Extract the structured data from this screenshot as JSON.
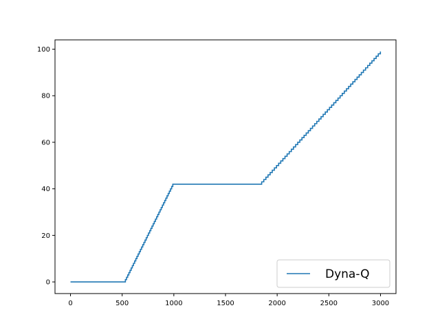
{
  "chart_data": {
    "type": "line",
    "title": "",
    "xlabel": "",
    "ylabel": "",
    "xlim": [
      -150,
      3150
    ],
    "ylim": [
      -5,
      104
    ],
    "xticks": [
      0,
      500,
      1000,
      1500,
      2000,
      2500,
      3000
    ],
    "yticks": [
      0,
      20,
      40,
      60,
      80,
      100
    ],
    "grid": false,
    "legend": {
      "placement": "lower-right"
    },
    "series": [
      {
        "name": "Dyna-Q",
        "color": "#1f77b4",
        "step": true,
        "x": [
          0,
          520,
          990,
          1820,
          1850,
          2999
        ],
        "y": [
          0,
          0,
          42,
          42,
          43,
          99
        ]
      }
    ]
  }
}
